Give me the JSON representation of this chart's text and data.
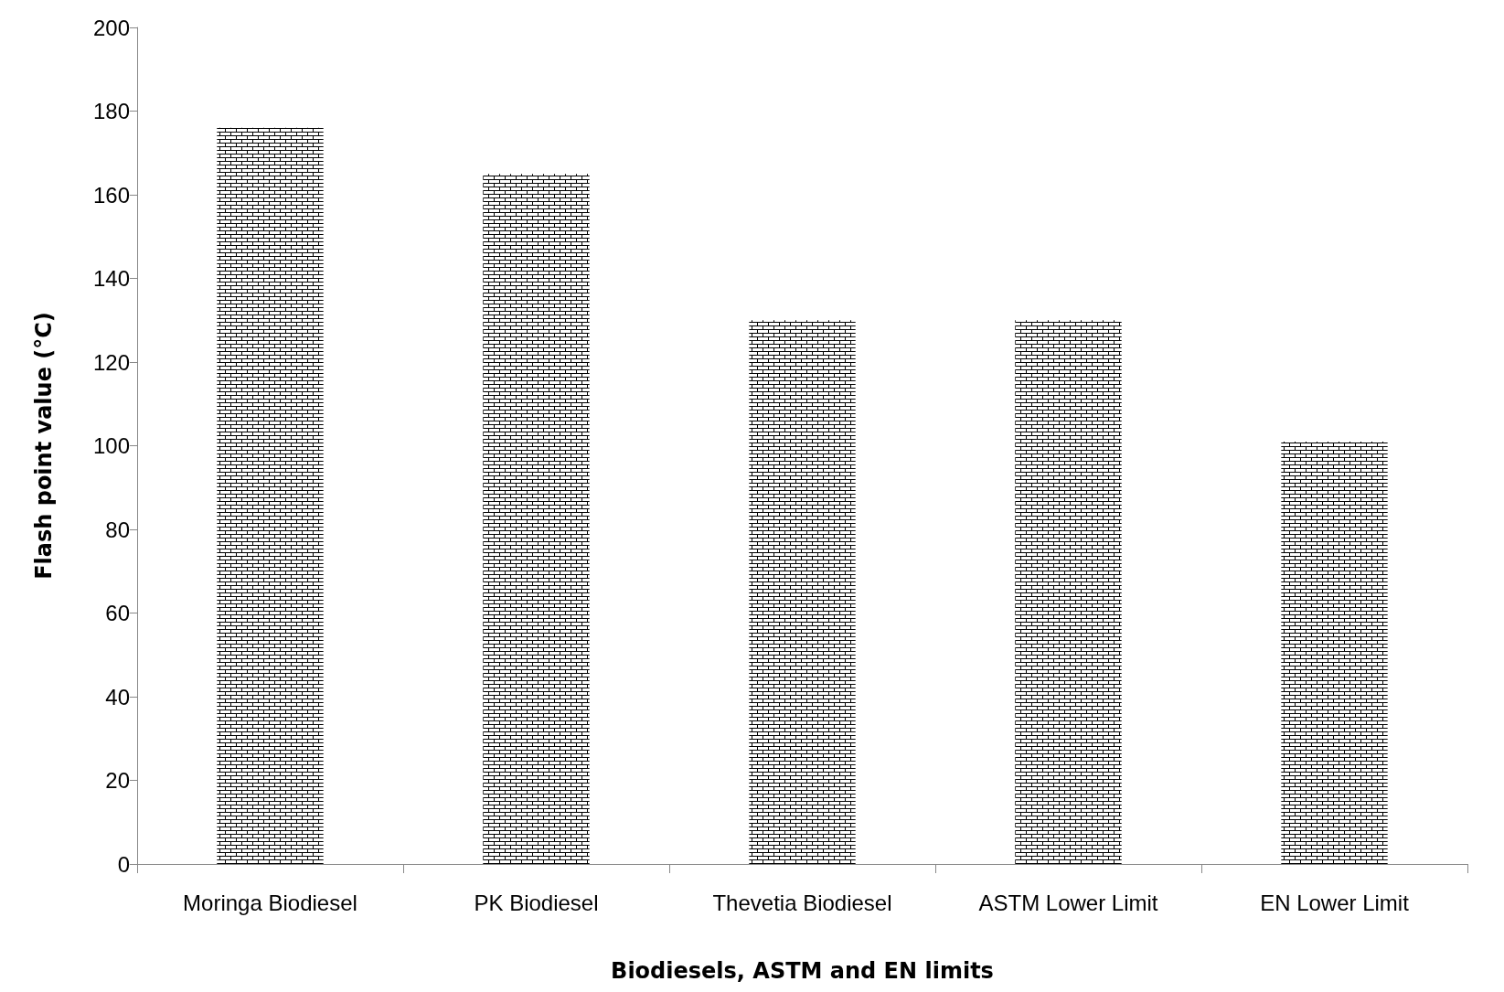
{
  "chart_data": {
    "type": "bar",
    "xlabel": "Biodiesels, ASTM and EN limits",
    "ylabel": "Flash point value (°C)",
    "categories": [
      "Moringa Biodiesel",
      "PK Biodiesel",
      "Thevetia Biodiesel",
      "ASTM Lower Limit",
      "EN Lower Limit"
    ],
    "values": [
      176,
      165,
      130,
      130,
      101
    ],
    "color": "#000000",
    "ylim": [
      0,
      200
    ],
    "yticks": [
      0,
      20,
      40,
      60,
      80,
      100,
      120,
      140,
      160,
      180,
      200
    ],
    "grid": false
  }
}
